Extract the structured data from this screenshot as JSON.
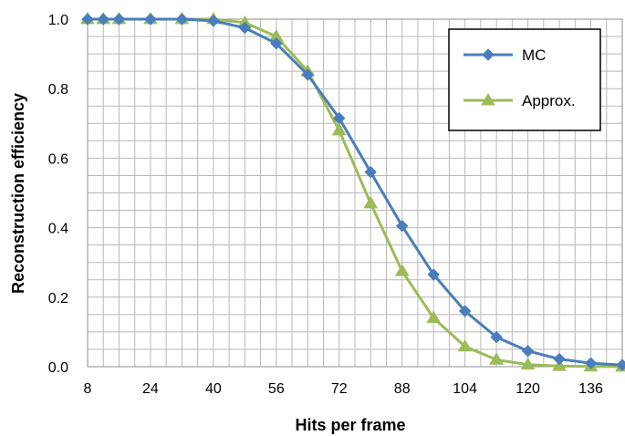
{
  "chart_data": {
    "type": "line",
    "xlabel": "Hits per frame",
    "ylabel": "Reconstruction efficiency",
    "xlim": [
      8,
      144
    ],
    "ylim": [
      0,
      1.0
    ],
    "x_ticks": [
      8,
      24,
      40,
      56,
      72,
      88,
      104,
      120,
      136
    ],
    "x_tick_labels": [
      "8",
      "24",
      "40",
      "56",
      "72",
      "88",
      "104",
      "120",
      "136"
    ],
    "y_ticks": [
      0,
      0.2,
      0.4,
      0.6,
      0.8,
      1.0
    ],
    "y_tick_labels": [
      "0.0",
      "0.2",
      "0.4",
      "0.6",
      "0.8",
      "1.0"
    ],
    "grid": true,
    "legend_position": "top-right",
    "series": [
      {
        "name": "MC",
        "color": "#4a7ebb",
        "marker": "diamond",
        "x": [
          8,
          12,
          16,
          24,
          32,
          40,
          48,
          56,
          64,
          72,
          80,
          88,
          96,
          104,
          112,
          120,
          128,
          136,
          144
        ],
        "y": [
          1.0,
          1.0,
          1.0,
          1.0,
          1.0,
          0.995,
          0.975,
          0.93,
          0.84,
          0.715,
          0.56,
          0.405,
          0.265,
          0.16,
          0.085,
          0.045,
          0.022,
          0.01,
          0.005
        ]
      },
      {
        "name": "Approx.",
        "color": "#9bbb59",
        "marker": "triangle",
        "x": [
          8,
          12,
          16,
          24,
          32,
          40,
          48,
          56,
          64,
          72,
          80,
          88,
          96,
          104,
          112,
          120,
          128,
          136,
          144
        ],
        "y": [
          1.0,
          1.0,
          1.0,
          1.0,
          1.0,
          1.0,
          0.99,
          0.95,
          0.85,
          0.68,
          0.47,
          0.275,
          0.14,
          0.058,
          0.02,
          0.006,
          0.002,
          0.0005,
          0.0
        ]
      }
    ]
  }
}
